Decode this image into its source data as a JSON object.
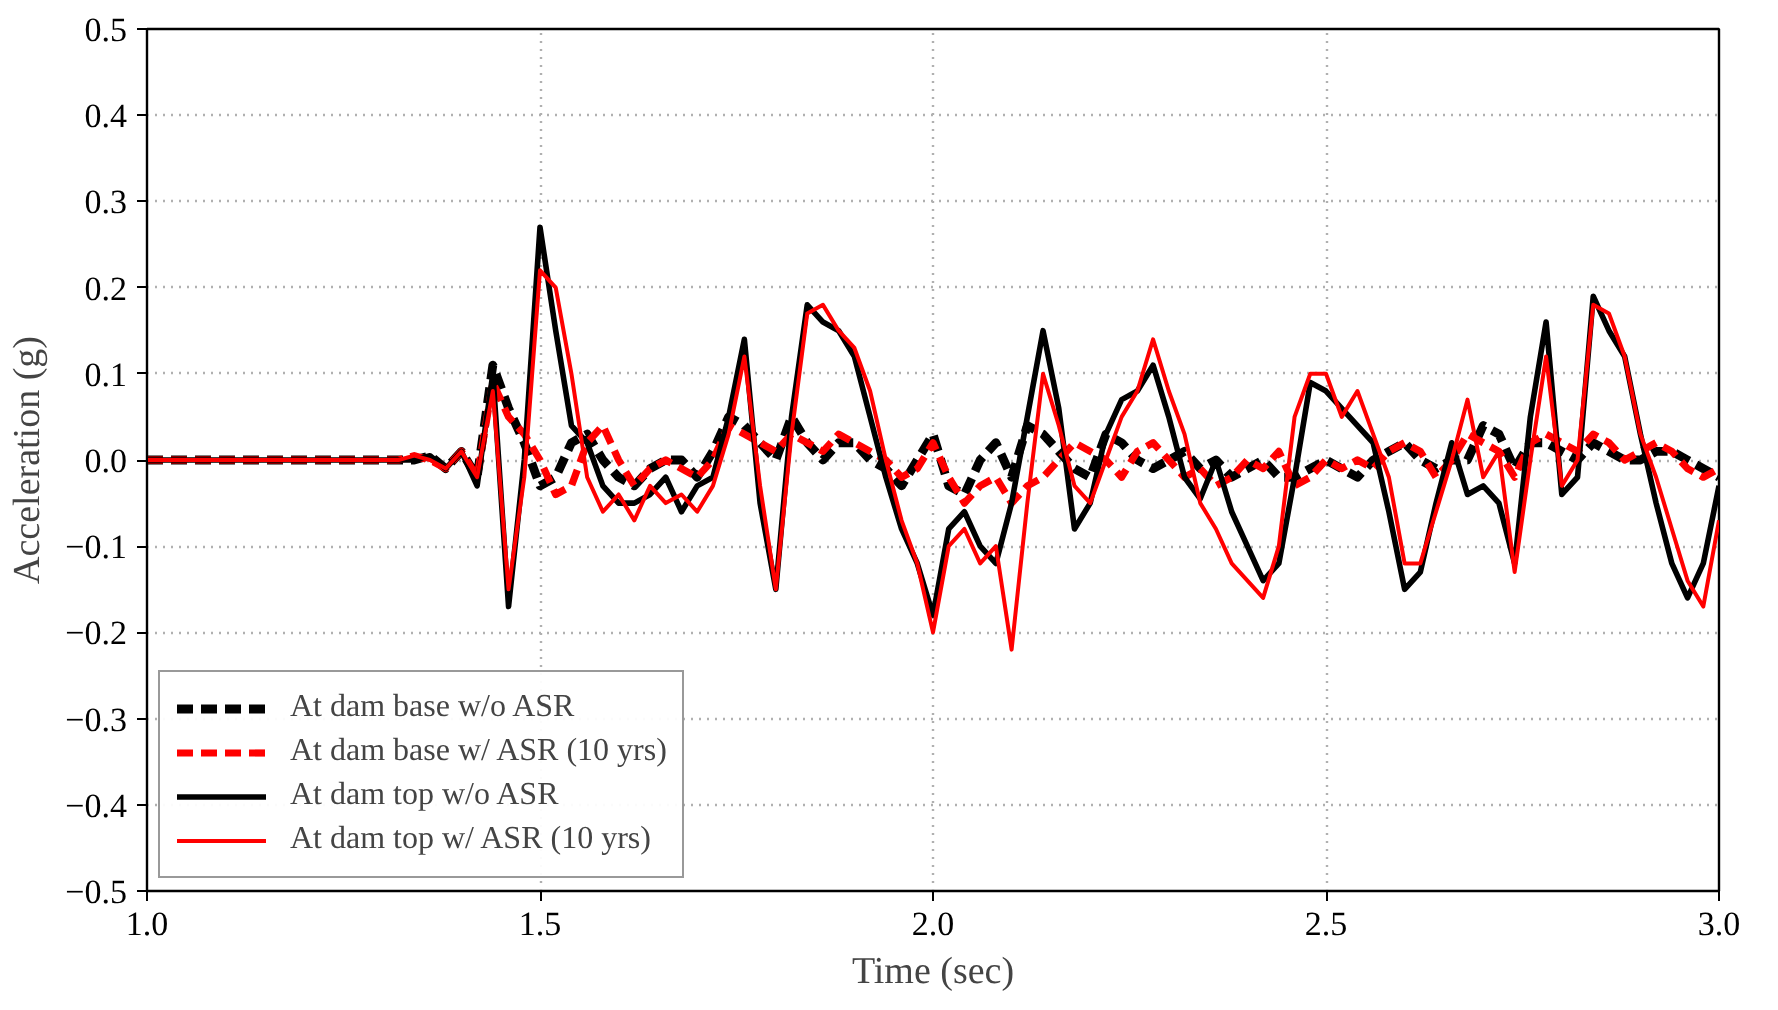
{
  "chart_data": {
    "type": "line",
    "xlabel": "Time (sec)",
    "ylabel": "Acceleration (g)",
    "xlim": [
      1.0,
      3.0
    ],
    "xticks": [
      {
        "value": 1.0,
        "label": "1.0"
      },
      1.5,
      {
        "value": 2.0,
        "label": "2.0"
      },
      2.5,
      {
        "value": 3.0,
        "label": "3.0"
      }
    ],
    "ylim": [
      -0.5,
      0.5
    ],
    "yticks": [
      {
        "value": -0.5,
        "label": "−0.5"
      },
      {
        "value": -0.4,
        "label": "−0.4"
      },
      {
        "value": -0.3,
        "label": "−0.3"
      },
      {
        "value": -0.2,
        "label": "−0.2"
      },
      {
        "value": -0.1,
        "label": "−0.1"
      },
      {
        "value": 0,
        "label": "0.0"
      },
      0.1,
      0.2,
      0.3,
      0.4,
      0.5
    ],
    "grid": true,
    "legend": "bottom left",
    "x": [
      1.0,
      1.02,
      1.04,
      1.06,
      1.08,
      1.1,
      1.12,
      1.14,
      1.16,
      1.18,
      1.2,
      1.22,
      1.24,
      1.26,
      1.28,
      1.3,
      1.32,
      1.34,
      1.36,
      1.38,
      1.4,
      1.42,
      1.44,
      1.46,
      1.48,
      1.5,
      1.52,
      1.54,
      1.56,
      1.58,
      1.6,
      1.62,
      1.64,
      1.66,
      1.68,
      1.7,
      1.72,
      1.74,
      1.76,
      1.78,
      1.8,
      1.82,
      1.84,
      1.86,
      1.88,
      1.9,
      1.92,
      1.94,
      1.96,
      1.98,
      2.0,
      2.02,
      2.04,
      2.06,
      2.08,
      2.1,
      2.12,
      2.14,
      2.16,
      2.18,
      2.2,
      2.22,
      2.24,
      2.26,
      2.28,
      2.3,
      2.32,
      2.34,
      2.36,
      2.38,
      2.4,
      2.42,
      2.44,
      2.46,
      2.48,
      2.5,
      2.52,
      2.54,
      2.56,
      2.58,
      2.6,
      2.62,
      2.64,
      2.66,
      2.68,
      2.7,
      2.72,
      2.74,
      2.76,
      2.78,
      2.8,
      2.82,
      2.84,
      2.86,
      2.88,
      2.9,
      2.92,
      2.94,
      2.96,
      2.98,
      3.0
    ],
    "series": [
      {
        "name": "At dam base w/o ASR",
        "color": "#000000",
        "line_style": "dashed",
        "values": [
          0,
          0,
          0,
          0,
          0,
          0,
          0,
          0,
          0,
          0,
          0,
          0,
          0,
          0,
          0,
          0,
          0,
          0,
          0.005,
          -0.01,
          0.01,
          -0.02,
          0.11,
          0.06,
          0.02,
          -0.03,
          -0.02,
          0.02,
          0.03,
          0.0,
          -0.02,
          -0.03,
          -0.01,
          0.0,
          0.0,
          -0.02,
          0.01,
          0.05,
          0.04,
          0.02,
          0.0,
          0.05,
          0.02,
          0.0,
          0.02,
          0.02,
          0.0,
          -0.01,
          -0.03,
          0.0,
          0.03,
          -0.03,
          -0.04,
          0.0,
          0.02,
          -0.02,
          0.04,
          0.03,
          0.01,
          -0.01,
          -0.02,
          0.03,
          0.02,
          0.0,
          -0.01,
          0.0,
          0.01,
          -0.01,
          0.0,
          -0.02,
          -0.01,
          0.0,
          -0.02,
          -0.02,
          -0.01,
          0.0,
          -0.01,
          -0.02,
          0.0,
          0.01,
          0.02,
          0.0,
          -0.01,
          0.0,
          0.0,
          0.04,
          0.03,
          -0.01,
          0.02,
          0.02,
          0.01,
          0.0,
          0.02,
          0.01,
          0.0,
          0.0,
          0.01,
          0.01,
          0.0,
          -0.01,
          -0.02
        ]
      },
      {
        "name": "At dam base w/ ASR (10 yrs)",
        "color": "#ff0000",
        "line_style": "dashed",
        "values": [
          0,
          0,
          0,
          0,
          0,
          0,
          0,
          0,
          0,
          0,
          0,
          0,
          0,
          0,
          0,
          0,
          0,
          0.005,
          0.0,
          -0.01,
          0.01,
          -0.02,
          0.09,
          0.05,
          0.03,
          0.0,
          -0.04,
          -0.03,
          0.02,
          0.04,
          0.0,
          -0.03,
          -0.01,
          0.0,
          -0.01,
          -0.02,
          0.0,
          0.04,
          0.03,
          0.02,
          0.01,
          0.03,
          0.02,
          0.01,
          0.03,
          0.02,
          0.01,
          0.0,
          -0.02,
          -0.01,
          0.02,
          -0.02,
          -0.05,
          -0.03,
          -0.02,
          -0.05,
          -0.03,
          -0.02,
          0.0,
          0.02,
          0.01,
          0.0,
          -0.02,
          0.01,
          0.02,
          0.0,
          -0.02,
          -0.01,
          -0.03,
          -0.02,
          0.0,
          -0.01,
          0.01,
          -0.03,
          -0.02,
          0.0,
          -0.01,
          0.0,
          -0.01,
          0.01,
          0.02,
          0.01,
          -0.02,
          0.0,
          0.03,
          0.02,
          0.01,
          -0.02,
          0.02,
          0.03,
          0.02,
          0.01,
          0.03,
          0.02,
          0.0,
          0.01,
          0.02,
          0.01,
          -0.01,
          -0.02,
          -0.01
        ]
      },
      {
        "name": "At dam top w/o ASR",
        "color": "#000000",
        "line_style": "solid",
        "values": [
          0,
          0,
          0,
          0,
          0,
          0,
          0,
          0,
          0,
          0,
          0,
          0,
          0,
          0,
          0,
          0,
          0.0,
          0.0,
          0.005,
          -0.01,
          0.01,
          -0.03,
          0.1,
          -0.17,
          0.0,
          0.27,
          0.15,
          0.04,
          0.02,
          -0.03,
          -0.05,
          -0.05,
          -0.04,
          -0.02,
          -0.06,
          -0.03,
          -0.02,
          0.05,
          0.14,
          -0.05,
          -0.15,
          0.05,
          0.18,
          0.16,
          0.15,
          0.12,
          0.05,
          -0.02,
          -0.08,
          -0.12,
          -0.18,
          -0.08,
          -0.06,
          -0.1,
          -0.12,
          -0.05,
          0.05,
          0.15,
          0.06,
          -0.08,
          -0.05,
          0.03,
          0.07,
          0.08,
          0.11,
          0.05,
          -0.02,
          -0.045,
          0.0,
          -0.06,
          -0.1,
          -0.14,
          -0.12,
          -0.02,
          0.09,
          0.08,
          0.06,
          0.04,
          0.02,
          -0.06,
          -0.15,
          -0.13,
          -0.05,
          0.02,
          -0.04,
          -0.03,
          -0.05,
          -0.12,
          0.05,
          0.16,
          -0.04,
          -0.02,
          0.19,
          0.15,
          0.12,
          0.03,
          -0.05,
          -0.12,
          -0.16,
          -0.12,
          -0.03
        ]
      },
      {
        "name": "At dam top w/ ASR (10 yrs)",
        "color": "#ff0000",
        "line_style": "solid",
        "values": [
          0,
          0,
          0,
          0,
          0,
          0,
          0,
          0,
          0,
          0,
          0,
          0,
          0,
          0,
          0,
          0,
          0.0,
          0.005,
          0.0,
          -0.01,
          0.01,
          -0.02,
          0.08,
          -0.15,
          -0.02,
          0.22,
          0.2,
          0.1,
          -0.02,
          -0.06,
          -0.04,
          -0.07,
          -0.03,
          -0.05,
          -0.04,
          -0.06,
          -0.03,
          0.03,
          0.12,
          -0.03,
          -0.15,
          0.03,
          0.17,
          0.18,
          0.15,
          0.13,
          0.08,
          0.0,
          -0.07,
          -0.12,
          -0.2,
          -0.1,
          -0.08,
          -0.12,
          -0.1,
          -0.22,
          -0.05,
          0.1,
          0.04,
          -0.03,
          -0.05,
          0.0,
          0.05,
          0.08,
          0.14,
          0.08,
          0.03,
          -0.05,
          -0.08,
          -0.12,
          -0.14,
          -0.16,
          -0.1,
          0.05,
          0.1,
          0.1,
          0.05,
          0.08,
          0.03,
          -0.02,
          -0.12,
          -0.12,
          -0.06,
          0.0,
          0.07,
          -0.02,
          0.01,
          -0.13,
          0.0,
          0.12,
          -0.03,
          0.0,
          0.18,
          0.17,
          0.12,
          0.03,
          -0.02,
          -0.08,
          -0.14,
          -0.17,
          -0.07
        ]
      }
    ]
  }
}
